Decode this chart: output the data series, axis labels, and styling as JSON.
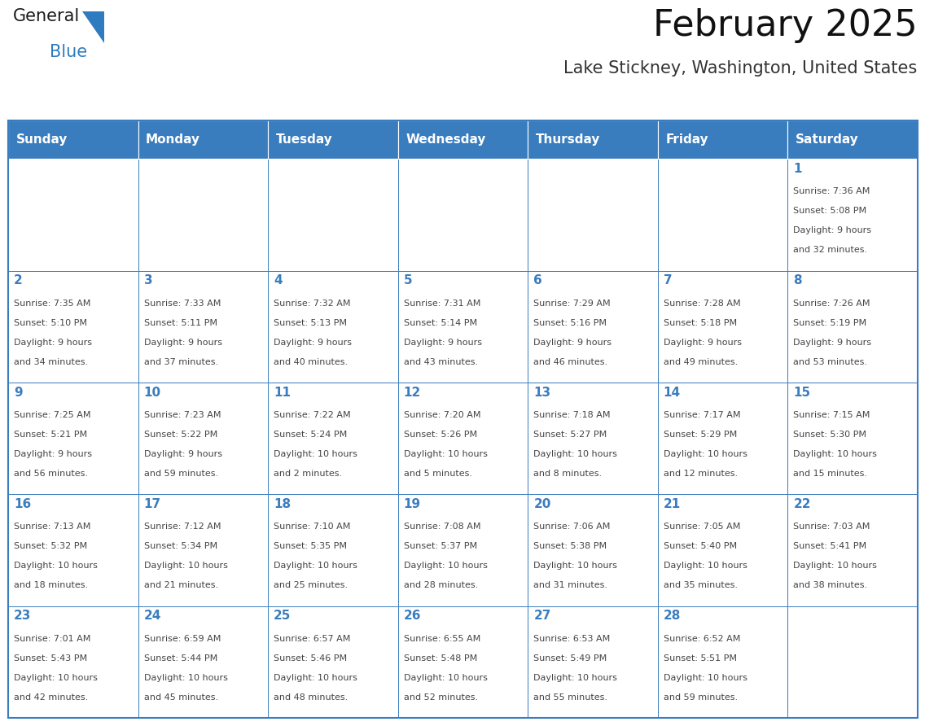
{
  "title": "February 2025",
  "subtitle": "Lake Stickney, Washington, United States",
  "header_bg": "#3a7dbf",
  "header_text_color": "#ffffff",
  "cell_bg": "#ffffff",
  "border_color": "#3a7dbf",
  "text_color": "#444444",
  "day_number_color": "#3a7dbf",
  "day_headers": [
    "Sunday",
    "Monday",
    "Tuesday",
    "Wednesday",
    "Thursday",
    "Friday",
    "Saturday"
  ],
  "days": [
    {
      "day": 1,
      "col": 6,
      "row": 0,
      "sunrise": "7:36 AM",
      "sunset": "5:08 PM",
      "daylight": "9 hours and 32 minutes."
    },
    {
      "day": 2,
      "col": 0,
      "row": 1,
      "sunrise": "7:35 AM",
      "sunset": "5:10 PM",
      "daylight": "9 hours and 34 minutes."
    },
    {
      "day": 3,
      "col": 1,
      "row": 1,
      "sunrise": "7:33 AM",
      "sunset": "5:11 PM",
      "daylight": "9 hours and 37 minutes."
    },
    {
      "day": 4,
      "col": 2,
      "row": 1,
      "sunrise": "7:32 AM",
      "sunset": "5:13 PM",
      "daylight": "9 hours and 40 minutes."
    },
    {
      "day": 5,
      "col": 3,
      "row": 1,
      "sunrise": "7:31 AM",
      "sunset": "5:14 PM",
      "daylight": "9 hours and 43 minutes."
    },
    {
      "day": 6,
      "col": 4,
      "row": 1,
      "sunrise": "7:29 AM",
      "sunset": "5:16 PM",
      "daylight": "9 hours and 46 minutes."
    },
    {
      "day": 7,
      "col": 5,
      "row": 1,
      "sunrise": "7:28 AM",
      "sunset": "5:18 PM",
      "daylight": "9 hours and 49 minutes."
    },
    {
      "day": 8,
      "col": 6,
      "row": 1,
      "sunrise": "7:26 AM",
      "sunset": "5:19 PM",
      "daylight": "9 hours and 53 minutes."
    },
    {
      "day": 9,
      "col": 0,
      "row": 2,
      "sunrise": "7:25 AM",
      "sunset": "5:21 PM",
      "daylight": "9 hours and 56 minutes."
    },
    {
      "day": 10,
      "col": 1,
      "row": 2,
      "sunrise": "7:23 AM",
      "sunset": "5:22 PM",
      "daylight": "9 hours and 59 minutes."
    },
    {
      "day": 11,
      "col": 2,
      "row": 2,
      "sunrise": "7:22 AM",
      "sunset": "5:24 PM",
      "daylight": "10 hours and 2 minutes."
    },
    {
      "day": 12,
      "col": 3,
      "row": 2,
      "sunrise": "7:20 AM",
      "sunset": "5:26 PM",
      "daylight": "10 hours and 5 minutes."
    },
    {
      "day": 13,
      "col": 4,
      "row": 2,
      "sunrise": "7:18 AM",
      "sunset": "5:27 PM",
      "daylight": "10 hours and 8 minutes."
    },
    {
      "day": 14,
      "col": 5,
      "row": 2,
      "sunrise": "7:17 AM",
      "sunset": "5:29 PM",
      "daylight": "10 hours and 12 minutes."
    },
    {
      "day": 15,
      "col": 6,
      "row": 2,
      "sunrise": "7:15 AM",
      "sunset": "5:30 PM",
      "daylight": "10 hours and 15 minutes."
    },
    {
      "day": 16,
      "col": 0,
      "row": 3,
      "sunrise": "7:13 AM",
      "sunset": "5:32 PM",
      "daylight": "10 hours and 18 minutes."
    },
    {
      "day": 17,
      "col": 1,
      "row": 3,
      "sunrise": "7:12 AM",
      "sunset": "5:34 PM",
      "daylight": "10 hours and 21 minutes."
    },
    {
      "day": 18,
      "col": 2,
      "row": 3,
      "sunrise": "7:10 AM",
      "sunset": "5:35 PM",
      "daylight": "10 hours and 25 minutes."
    },
    {
      "day": 19,
      "col": 3,
      "row": 3,
      "sunrise": "7:08 AM",
      "sunset": "5:37 PM",
      "daylight": "10 hours and 28 minutes."
    },
    {
      "day": 20,
      "col": 4,
      "row": 3,
      "sunrise": "7:06 AM",
      "sunset": "5:38 PM",
      "daylight": "10 hours and 31 minutes."
    },
    {
      "day": 21,
      "col": 5,
      "row": 3,
      "sunrise": "7:05 AM",
      "sunset": "5:40 PM",
      "daylight": "10 hours and 35 minutes."
    },
    {
      "day": 22,
      "col": 6,
      "row": 3,
      "sunrise": "7:03 AM",
      "sunset": "5:41 PM",
      "daylight": "10 hours and 38 minutes."
    },
    {
      "day": 23,
      "col": 0,
      "row": 4,
      "sunrise": "7:01 AM",
      "sunset": "5:43 PM",
      "daylight": "10 hours and 42 minutes."
    },
    {
      "day": 24,
      "col": 1,
      "row": 4,
      "sunrise": "6:59 AM",
      "sunset": "5:44 PM",
      "daylight": "10 hours and 45 minutes."
    },
    {
      "day": 25,
      "col": 2,
      "row": 4,
      "sunrise": "6:57 AM",
      "sunset": "5:46 PM",
      "daylight": "10 hours and 48 minutes."
    },
    {
      "day": 26,
      "col": 3,
      "row": 4,
      "sunrise": "6:55 AM",
      "sunset": "5:48 PM",
      "daylight": "10 hours and 52 minutes."
    },
    {
      "day": 27,
      "col": 4,
      "row": 4,
      "sunrise": "6:53 AM",
      "sunset": "5:49 PM",
      "daylight": "10 hours and 55 minutes."
    },
    {
      "day": 28,
      "col": 5,
      "row": 4,
      "sunrise": "6:52 AM",
      "sunset": "5:51 PM",
      "daylight": "10 hours and 59 minutes."
    }
  ],
  "num_rows": 5,
  "num_cols": 7,
  "logo_general_color": "#1a1a1a",
  "logo_blue_color": "#2e7bbf",
  "logo_triangle_color": "#2e7bbf",
  "title_fontsize": 32,
  "subtitle_fontsize": 15,
  "header_fontsize": 11,
  "day_num_fontsize": 11,
  "cell_text_fontsize": 8
}
